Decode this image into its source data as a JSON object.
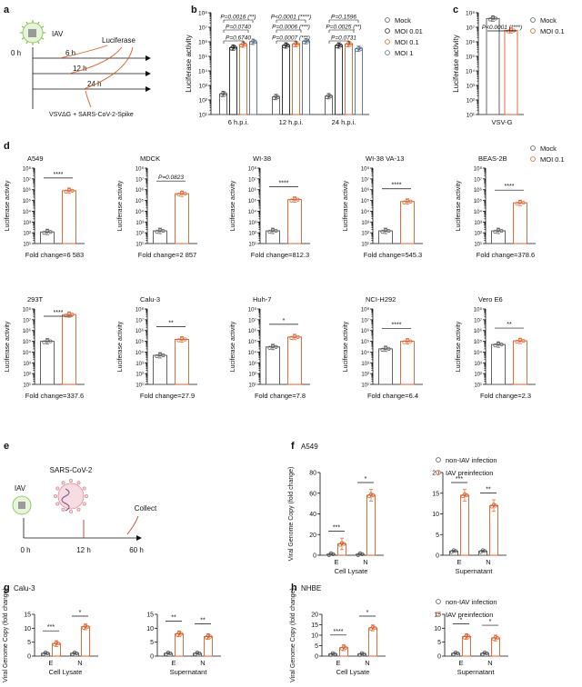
{
  "colors": {
    "mock": "#555555",
    "moi001": "#222222",
    "moi01": "#d9602b",
    "moi1": "#5a6b80",
    "axis": "#111111"
  },
  "panel_letters": [
    "a",
    "b",
    "c",
    "d",
    "e",
    "f",
    "g",
    "h"
  ],
  "a": {
    "virus": "IAV",
    "t0": "0 h",
    "t6": "6 h",
    "t12": "12 h",
    "t24": "24 h",
    "readout": "Luciferase",
    "vector": "VSVΔG + SARS-CoV-2-Spike"
  },
  "e": {
    "virus1": "IAV",
    "virus2": "SARS-CoV-2",
    "t0": "0 h",
    "t12": "12 h",
    "t60": "60 h",
    "step": "Collect"
  },
  "chart_data": [
    {
      "id": "b",
      "type": "bar",
      "ylabel": "Luciferase activity",
      "yscale": "log",
      "ylim_exp": [
        1,
        8
      ],
      "yticks": [
        "10¹",
        "10²",
        "10³",
        "10⁴",
        "10⁵",
        "10⁶",
        "10⁷",
        "10⁸"
      ],
      "categories": [
        "6 h.p.i.",
        "12 h.p.i.",
        "24 h.p.i."
      ],
      "legend": [
        "Mock",
        "MOI 0.01",
        "MOI 0.1",
        "MOI 1"
      ],
      "series": [
        {
          "name": "Mock",
          "values": [
            260,
            160,
            180
          ]
        },
        {
          "name": "MOI 0.01",
          "values": [
            400000,
            560000,
            560000
          ]
        },
        {
          "name": "MOI 0.1",
          "values": [
            650000,
            700000,
            700000
          ]
        },
        {
          "name": "MOI 1",
          "values": [
            1000000,
            1100000,
            330000
          ]
        }
      ],
      "annotations": [
        "P=0.0016 (**)",
        "P=0.0740",
        "P=0.6740",
        "P<0.0001 (****)",
        "P=0.0006 (***)",
        "P=0.0007 (***)",
        "P=0.1596",
        "P=0.0025 (**)",
        "P=0.0731"
      ]
    },
    {
      "id": "c",
      "type": "bar",
      "ylabel": "Luciferase activity",
      "yscale": "log",
      "ylim_exp": [
        1,
        8
      ],
      "yticks": [
        "10¹",
        "10²",
        "10³",
        "10⁴",
        "10⁵",
        "10⁶",
        "10⁷",
        "10⁸"
      ],
      "categories": [
        "VSV-G"
      ],
      "legend": [
        "Mock",
        "MOI 0.1"
      ],
      "series": [
        {
          "name": "Mock",
          "values": [
            40000000
          ]
        },
        {
          "name": "MOI 0.1",
          "values": [
            6000000
          ]
        }
      ],
      "annotations": [
        "P<0.0001 (****)"
      ]
    },
    {
      "id": "d",
      "type": "bar",
      "ylabel": "Luciferase activity",
      "yscale": "log",
      "ylim_exp": [
        1,
        8
      ],
      "yticks": [
        "10¹",
        "10²",
        "10³",
        "10⁴",
        "10⁵",
        "10⁶",
        "10⁷",
        "10⁸"
      ],
      "legend": [
        "Mock",
        "MOI 0.1"
      ],
      "cells": [
        {
          "title": "A549",
          "mock": 120,
          "moi": 800000,
          "sig": "****",
          "fold": "Fold change=6 583"
        },
        {
          "title": "MDCK",
          "mock": 150,
          "moi": 420000,
          "sig": "P=0.0823",
          "fold": "Fold change=2 857"
        },
        {
          "title": "WI-38",
          "mock": 150,
          "moi": 120000,
          "sig": "****",
          "fold": "Fold change=812.3"
        },
        {
          "title": "WI-38 VA-13",
          "mock": 150,
          "moi": 80000,
          "sig": "****",
          "fold": "Fold change=545.3"
        },
        {
          "title": "BEAS-2B",
          "mock": 150,
          "moi": 60000,
          "sig": "****",
          "fold": "Fold change=378.6"
        },
        {
          "title": "293T",
          "mock": 100000,
          "moi": 30000000,
          "sig": "****",
          "fold": "Fold change=337.6"
        },
        {
          "title": "Calu-3",
          "mock": 5000,
          "moi": 150000,
          "sig": "**",
          "fold": "Fold change=27.9"
        },
        {
          "title": "Huh-7",
          "mock": 30000,
          "moi": 250000,
          "sig": "*",
          "fold": "Fold change=7.8"
        },
        {
          "title": "NCI-H292",
          "mock": 20000,
          "moi": 100000,
          "sig": "****",
          "fold": "Fold change=6.4"
        },
        {
          "title": "Vero E6",
          "mock": 50000,
          "moi": 110000,
          "sig": "**",
          "fold": "Fold change=2.3"
        }
      ]
    },
    {
      "id": "f",
      "title": "A549",
      "type": "bar",
      "ylabel": "Viral Genome Copy (fold change)",
      "legend": [
        "non-IAV infection",
        "IAV preinfection"
      ],
      "groups": [
        {
          "xlabel": "Cell Lysate",
          "ylim": [
            0,
            80
          ],
          "yticks": [
            0,
            20,
            40,
            60,
            80
          ],
          "categories": [
            "E",
            "N"
          ],
          "series": [
            {
              "name": "non-IAV infection",
              "values": [
                1,
                1
              ]
            },
            {
              "name": "IAV preinfection",
              "values": [
                11,
                58
              ]
            }
          ],
          "sig": [
            "***",
            "*"
          ]
        },
        {
          "xlabel": "Supernatant",
          "ylim": [
            0,
            20
          ],
          "yticks": [
            0,
            5,
            10,
            15,
            20
          ],
          "categories": [
            "E",
            "N"
          ],
          "series": [
            {
              "name": "non-IAV infection",
              "values": [
                1,
                1
              ]
            },
            {
              "name": "IAV preinfection",
              "values": [
                14.5,
                12
              ]
            }
          ],
          "sig": [
            "***",
            "**"
          ]
        }
      ]
    },
    {
      "id": "g",
      "title": "Calu-3",
      "type": "bar",
      "ylabel": "Viral Genome Copy (fold change)",
      "groups": [
        {
          "xlabel": "Cell Lysate",
          "ylim": [
            0,
            15
          ],
          "yticks": [
            0,
            5,
            10,
            15
          ],
          "categories": [
            "E",
            "N"
          ],
          "series": [
            {
              "name": "non-IAV infection",
              "values": [
                1,
                1
              ]
            },
            {
              "name": "IAV preinfection",
              "values": [
                4.5,
                10.5
              ]
            }
          ],
          "sig": [
            "***",
            "*"
          ]
        },
        {
          "xlabel": "Supernatant",
          "ylim": [
            0,
            15
          ],
          "yticks": [
            0,
            5,
            10,
            15
          ],
          "categories": [
            "E",
            "N"
          ],
          "series": [
            {
              "name": "non-IAV infection",
              "values": [
                1,
                1
              ]
            },
            {
              "name": "IAV preinfection",
              "values": [
                8,
                7
              ]
            }
          ],
          "sig": [
            "**",
            "**"
          ]
        }
      ]
    },
    {
      "id": "h",
      "title": "NHBE",
      "type": "bar",
      "ylabel": "Viral Genome Copy (fold change)",
      "legend": [
        "non-IAV infection",
        "IAV preinfection"
      ],
      "groups": [
        {
          "xlabel": "Cell Lysate",
          "ylim": [
            0,
            20
          ],
          "yticks": [
            0,
            5,
            10,
            15,
            20
          ],
          "categories": [
            "E",
            "N"
          ],
          "series": [
            {
              "name": "non-IAV infection",
              "values": [
                1,
                1
              ]
            },
            {
              "name": "IAV preinfection",
              "values": [
                4,
                13.5
              ]
            }
          ],
          "sig": [
            "****",
            "*"
          ]
        },
        {
          "xlabel": "Supernatant",
          "ylim": [
            0,
            15
          ],
          "yticks": [
            0,
            5,
            10,
            15
          ],
          "categories": [
            "E",
            "N"
          ],
          "series": [
            {
              "name": "non-IAV infection",
              "values": [
                1,
                1
              ]
            },
            {
              "name": "IAV preinfection",
              "values": [
                7,
                6.5
              ]
            }
          ],
          "sig": [
            "*",
            "*"
          ]
        }
      ]
    }
  ]
}
